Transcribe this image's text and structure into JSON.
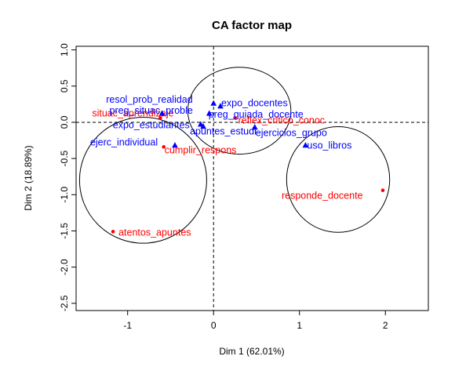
{
  "chart_data": {
    "type": "scatter",
    "title": "CA factor map",
    "xlabel": "Dim 1 (62.01%)",
    "ylabel": "Dim 2 (18.89%)",
    "xlim": [
      -1.6,
      2.5
    ],
    "ylim": [
      -2.6,
      1.05
    ],
    "x_ticks": [
      -1,
      0,
      1,
      2
    ],
    "y_ticks": [
      1.0,
      0.5,
      0.0,
      -0.5,
      -1.0,
      -1.5,
      -2.0,
      -2.5
    ],
    "x_tick_labels": [
      "-1",
      "0",
      "1",
      "2"
    ],
    "y_tick_labels": [
      "1.0",
      "0.5",
      "0.0",
      "-0.5",
      "-1.0",
      "-1.5",
      "-2.0",
      "-2.5"
    ],
    "reference_lines": {
      "x": 0,
      "y": 0
    },
    "colors": {
      "rows": "#ff0000",
      "columns": "#0000ff"
    },
    "series": [
      {
        "marker": "dot",
        "color": "#ff0000",
        "points": [
          {
            "label": "situac_aprendizaje",
            "x": -0.62,
            "y": 0.06
          },
          {
            "label": "cumplir_respons",
            "x": -0.58,
            "y": -0.34
          },
          {
            "label": "atentos_apuntes",
            "x": -1.17,
            "y": -1.51
          },
          {
            "label": "reflex_critico_conoc",
            "x": 0.25,
            "y": 0.06
          },
          {
            "label": "responde_docente",
            "x": 1.97,
            "y": -0.94
          }
        ]
      },
      {
        "marker": "triangle",
        "color": "#0000ff",
        "points": [
          {
            "label": "resol_prob_realidad",
            "x": 0.0,
            "y": 0.26
          },
          {
            "label": "preg_situac_proble",
            "x": -0.6,
            "y": 0.12
          },
          {
            "label": "expo_docentes",
            "x": 0.08,
            "y": 0.22
          },
          {
            "label": "preg_guiada_docente",
            "x": -0.05,
            "y": 0.12
          },
          {
            "label": "expo_estudiantes",
            "x": -0.15,
            "y": -0.03
          },
          {
            "label": "apuntes_estudi",
            "x": -0.12,
            "y": -0.06
          },
          {
            "label": "ejercicios_grupo",
            "x": 0.48,
            "y": -0.07
          },
          {
            "label": "ejerc_individual",
            "x": -0.45,
            "y": -0.32
          },
          {
            "label": "uso_libros",
            "x": 1.07,
            "y": -0.32
          }
        ]
      }
    ],
    "ellipses": [
      {
        "cx": -0.82,
        "cy": -0.8,
        "rx": 0.74,
        "ry": 0.87
      },
      {
        "cx": 0.3,
        "cy": 0.16,
        "rx": 0.6,
        "ry": 0.6
      },
      {
        "cx": 1.45,
        "cy": -0.79,
        "rx": 0.6,
        "ry": 0.73
      }
    ]
  }
}
